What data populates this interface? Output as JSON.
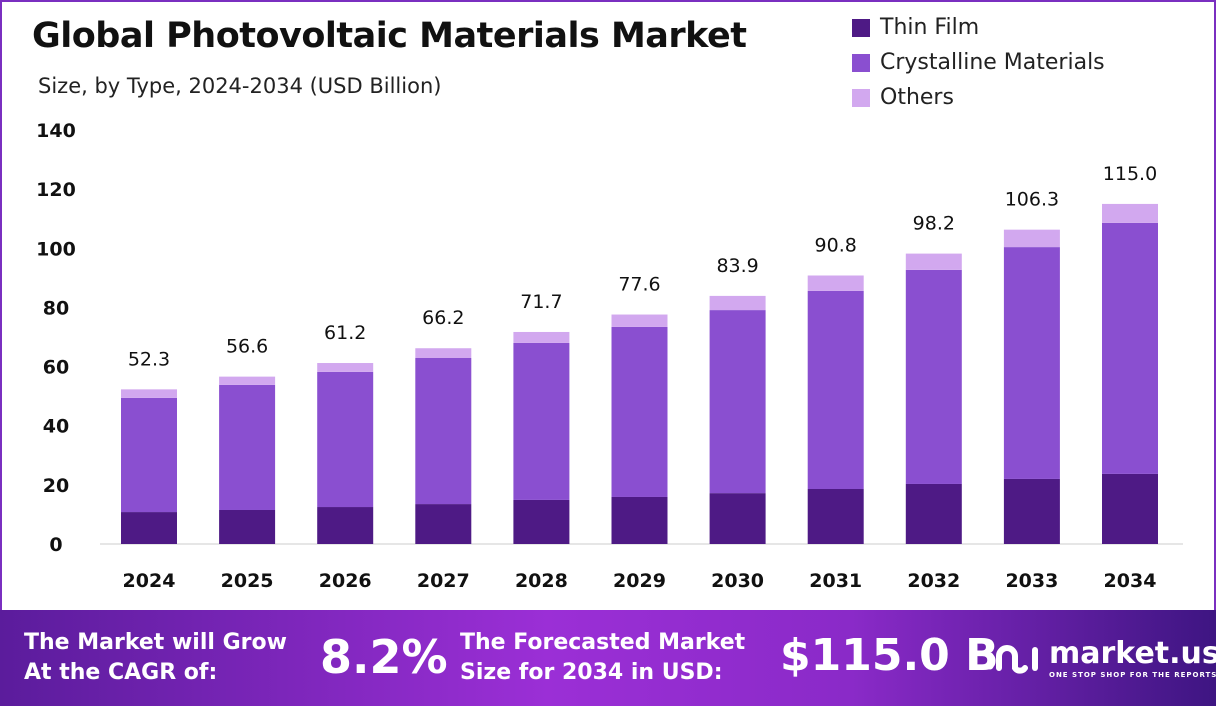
{
  "chart_data": {
    "type": "bar",
    "stacked": true,
    "title": "Global Photovoltaic Materials Market",
    "subtitle": "Size, by Type, 2024-2034 (USD Billion)",
    "categories": [
      "2024",
      "2025",
      "2026",
      "2027",
      "2028",
      "2029",
      "2030",
      "2031",
      "2032",
      "2033",
      "2034"
    ],
    "series": [
      {
        "name": "Thin Film",
        "color": "#4e1a85",
        "values": [
          10.8,
          11.5,
          12.5,
          13.5,
          14.9,
          15.9,
          17.2,
          18.6,
          20.3,
          22.0,
          23.7
        ]
      },
      {
        "name": "Crystalline Materials",
        "color": "#8a4fd0",
        "values": [
          38.6,
          42.3,
          45.7,
          49.4,
          53.1,
          57.5,
          61.9,
          67.0,
          72.4,
          78.4,
          84.9
        ]
      },
      {
        "name": "Others",
        "color": "#d2a8ef",
        "values": [
          2.9,
          2.8,
          3.0,
          3.3,
          3.7,
          4.2,
          4.8,
          5.2,
          5.5,
          5.9,
          6.4
        ]
      }
    ],
    "totals": [
      "52.3",
      "56.6",
      "61.2",
      "66.2",
      "71.7",
      "77.6",
      "83.9",
      "90.8",
      "98.2",
      "106.3",
      "115.0"
    ],
    "yticks": [
      "0",
      "20",
      "40",
      "60",
      "80",
      "100",
      "120",
      "140"
    ],
    "ylim": [
      0,
      140
    ],
    "grid": false,
    "legend": "top-right"
  },
  "footer": {
    "cagr_text_1": "The Market will Grow",
    "cagr_text_2": "At the CAGR of:",
    "cagr_value": "8.2%",
    "forecast_text_1": "The Forecasted Market",
    "forecast_text_2": "Size for 2034 in USD:",
    "forecast_value": "$115.0 B",
    "logo_name": "market.us",
    "logo_tagline": "ONE STOP SHOP FOR THE REPORTS"
  }
}
